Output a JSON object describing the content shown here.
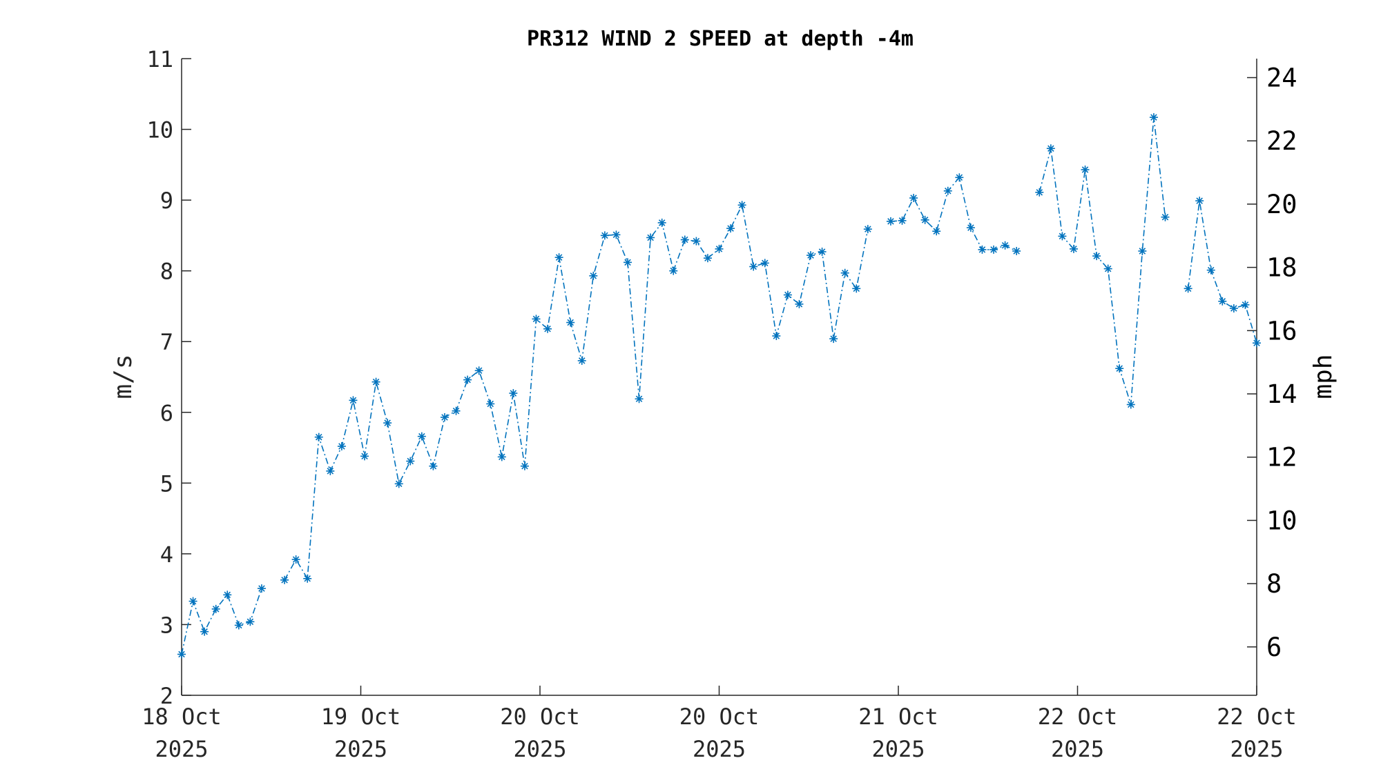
{
  "chart_data": {
    "type": "line",
    "title": "PR312 WIND 2 SPEED at depth -4m",
    "ylabel": "m/s",
    "ylabel_right": "mph",
    "ylim": [
      2,
      11
    ],
    "yticks": [
      "2",
      "3",
      "4",
      "5",
      "6",
      "7",
      "8",
      "9",
      "10",
      "11"
    ],
    "ylim_right": [
      4.47,
      24.6
    ],
    "yticks_right": [
      "6",
      "8",
      "10",
      "12",
      "14",
      "16",
      "18",
      "20",
      "22",
      "24"
    ],
    "xticks": [
      {
        "line1": "18 Oct",
        "line2": "2025"
      },
      {
        "line1": "19 Oct",
        "line2": "2025"
      },
      {
        "line1": "20 Oct",
        "line2": "2025"
      },
      {
        "line1": "20 Oct",
        "line2": "2025"
      },
      {
        "line1": "21 Oct",
        "line2": "2025"
      },
      {
        "line1": "22 Oct",
        "line2": "2025"
      },
      {
        "line1": "22 Oct",
        "line2": "2025"
      }
    ],
    "grid": false,
    "line_style": "dash-dot",
    "marker": "asterisk",
    "color": "#0072BD",
    "series": [
      {
        "values": [
          2.58,
          3.33,
          2.9,
          3.22,
          3.42,
          2.99,
          3.04,
          3.51,
          null,
          3.63,
          3.92,
          3.65,
          5.65,
          5.17,
          5.52,
          6.17,
          5.38,
          6.43,
          5.85,
          4.99,
          5.31,
          5.66,
          5.24,
          5.93,
          6.02,
          6.46,
          6.59,
          6.12,
          5.37,
          6.27,
          5.24,
          7.32,
          7.18,
          8.19,
          7.27,
          6.73,
          7.93,
          8.5,
          8.51,
          8.12,
          6.19,
          8.47,
          8.68,
          8.0,
          8.44,
          8.42,
          8.18,
          8.31,
          8.6,
          8.93,
          8.06,
          8.11,
          7.08,
          7.66,
          7.53,
          8.22,
          8.27,
          7.04,
          7.97,
          7.75,
          8.59,
          null,
          8.7,
          8.71,
          9.03,
          8.72,
          8.56,
          9.13,
          9.32,
          8.61,
          8.3,
          8.3,
          8.36,
          8.28,
          null,
          9.11,
          9.73,
          8.49,
          8.31,
          9.43,
          8.21,
          8.03,
          6.62,
          6.11,
          8.28,
          10.17,
          8.76,
          null,
          7.75,
          8.99,
          8.01,
          7.57,
          7.47,
          7.52,
          6.98
        ]
      }
    ]
  }
}
